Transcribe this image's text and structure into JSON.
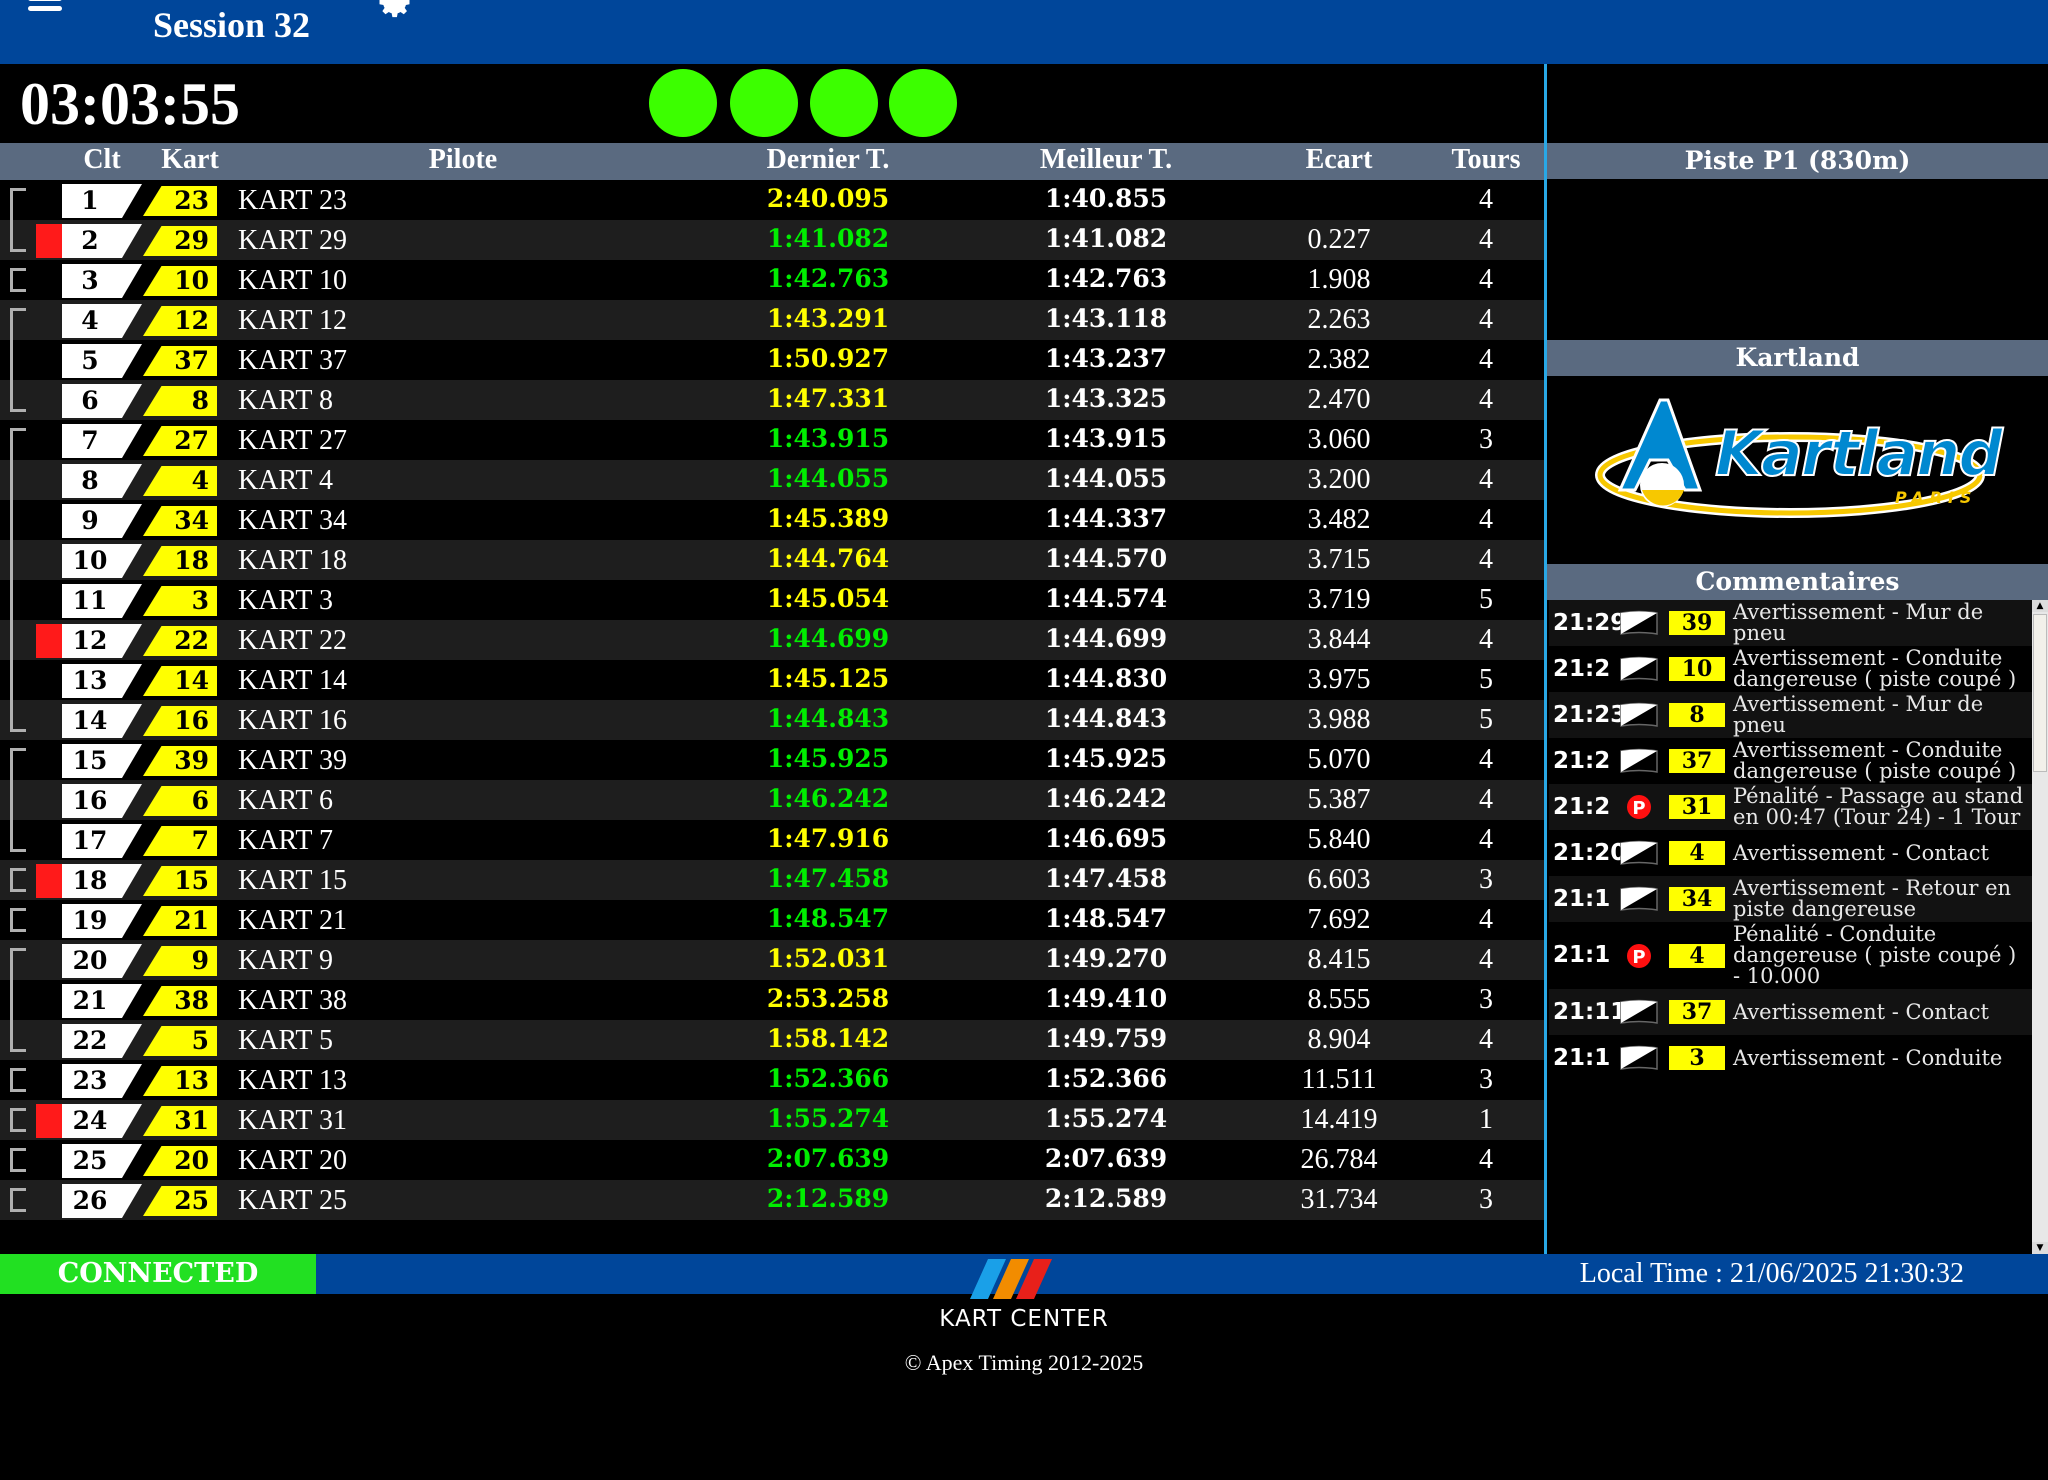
{
  "header": {
    "title": "Session 32",
    "menu_icon": "hamburger-icon",
    "settings_icon": "gear-icon"
  },
  "timer": "03:03:55",
  "lights": {
    "count": 4,
    "color": "#3cff00"
  },
  "table": {
    "columns": {
      "clt": "Clt",
      "kart": "Kart",
      "pilote": "Pilote",
      "dernier": "Dernier T.",
      "meilleur": "Meilleur T.",
      "ecart": "Ecart",
      "tours": "Tours"
    },
    "colors": {
      "personal_best": "#00ee00",
      "normal": "#ffff00"
    },
    "rows": [
      {
        "pos": "1",
        "kart": "23",
        "pilot": "KART 23",
        "last": "2:40.095",
        "best": "1:40.855",
        "gap": "",
        "laps": "4",
        "last_status": "normal",
        "bracket": "top",
        "flag": false
      },
      {
        "pos": "2",
        "kart": "29",
        "pilot": "KART 29",
        "last": "1:41.082",
        "best": "1:41.082",
        "gap": "0.227",
        "laps": "4",
        "last_status": "personal_best",
        "bracket": "bottom",
        "flag": true
      },
      {
        "pos": "3",
        "kart": "10",
        "pilot": "KART 10",
        "last": "1:42.763",
        "best": "1:42.763",
        "gap": "1.908",
        "laps": "4",
        "last_status": "personal_best",
        "bracket": "single",
        "flag": false
      },
      {
        "pos": "4",
        "kart": "12",
        "pilot": "KART 12",
        "last": "1:43.291",
        "best": "1:43.118",
        "gap": "2.263",
        "laps": "4",
        "last_status": "normal",
        "bracket": "top",
        "flag": false
      },
      {
        "pos": "5",
        "kart": "37",
        "pilot": "KART 37",
        "last": "1:50.927",
        "best": "1:43.237",
        "gap": "2.382",
        "laps": "4",
        "last_status": "normal",
        "bracket": "mid",
        "flag": false
      },
      {
        "pos": "6",
        "kart": "8",
        "pilot": "KART 8",
        "last": "1:47.331",
        "best": "1:43.325",
        "gap": "2.470",
        "laps": "4",
        "last_status": "normal",
        "bracket": "bottom",
        "flag": false
      },
      {
        "pos": "7",
        "kart": "27",
        "pilot": "KART 27",
        "last": "1:43.915",
        "best": "1:43.915",
        "gap": "3.060",
        "laps": "3",
        "last_status": "personal_best",
        "bracket": "top",
        "flag": false
      },
      {
        "pos": "8",
        "kart": "4",
        "pilot": "KART 4",
        "last": "1:44.055",
        "best": "1:44.055",
        "gap": "3.200",
        "laps": "4",
        "last_status": "personal_best",
        "bracket": "mid",
        "flag": false
      },
      {
        "pos": "9",
        "kart": "34",
        "pilot": "KART 34",
        "last": "1:45.389",
        "best": "1:44.337",
        "gap": "3.482",
        "laps": "4",
        "last_status": "normal",
        "bracket": "mid",
        "flag": false
      },
      {
        "pos": "10",
        "kart": "18",
        "pilot": "KART 18",
        "last": "1:44.764",
        "best": "1:44.570",
        "gap": "3.715",
        "laps": "4",
        "last_status": "normal",
        "bracket": "mid",
        "flag": false
      },
      {
        "pos": "11",
        "kart": "3",
        "pilot": "KART 3",
        "last": "1:45.054",
        "best": "1:44.574",
        "gap": "3.719",
        "laps": "5",
        "last_status": "normal",
        "bracket": "mid",
        "flag": false
      },
      {
        "pos": "12",
        "kart": "22",
        "pilot": "KART 22",
        "last": "1:44.699",
        "best": "1:44.699",
        "gap": "3.844",
        "laps": "4",
        "last_status": "personal_best",
        "bracket": "mid",
        "flag": true
      },
      {
        "pos": "13",
        "kart": "14",
        "pilot": "KART 14",
        "last": "1:45.125",
        "best": "1:44.830",
        "gap": "3.975",
        "laps": "5",
        "last_status": "normal",
        "bracket": "mid",
        "flag": false
      },
      {
        "pos": "14",
        "kart": "16",
        "pilot": "KART 16",
        "last": "1:44.843",
        "best": "1:44.843",
        "gap": "3.988",
        "laps": "5",
        "last_status": "personal_best",
        "bracket": "bottom",
        "flag": false
      },
      {
        "pos": "15",
        "kart": "39",
        "pilot": "KART 39",
        "last": "1:45.925",
        "best": "1:45.925",
        "gap": "5.070",
        "laps": "4",
        "last_status": "personal_best",
        "bracket": "top",
        "flag": false
      },
      {
        "pos": "16",
        "kart": "6",
        "pilot": "KART 6",
        "last": "1:46.242",
        "best": "1:46.242",
        "gap": "5.387",
        "laps": "4",
        "last_status": "personal_best",
        "bracket": "mid",
        "flag": false
      },
      {
        "pos": "17",
        "kart": "7",
        "pilot": "KART 7",
        "last": "1:47.916",
        "best": "1:46.695",
        "gap": "5.840",
        "laps": "4",
        "last_status": "normal",
        "bracket": "bottom",
        "flag": false
      },
      {
        "pos": "18",
        "kart": "15",
        "pilot": "KART 15",
        "last": "1:47.458",
        "best": "1:47.458",
        "gap": "6.603",
        "laps": "3",
        "last_status": "personal_best",
        "bracket": "single",
        "flag": true
      },
      {
        "pos": "19",
        "kart": "21",
        "pilot": "KART 21",
        "last": "1:48.547",
        "best": "1:48.547",
        "gap": "7.692",
        "laps": "4",
        "last_status": "personal_best",
        "bracket": "single",
        "flag": false
      },
      {
        "pos": "20",
        "kart": "9",
        "pilot": "KART 9",
        "last": "1:52.031",
        "best": "1:49.270",
        "gap": "8.415",
        "laps": "4",
        "last_status": "normal",
        "bracket": "top",
        "flag": false
      },
      {
        "pos": "21",
        "kart": "38",
        "pilot": "KART 38",
        "last": "2:53.258",
        "best": "1:49.410",
        "gap": "8.555",
        "laps": "3",
        "last_status": "normal",
        "bracket": "mid",
        "flag": false
      },
      {
        "pos": "22",
        "kart": "5",
        "pilot": "KART 5",
        "last": "1:58.142",
        "best": "1:49.759",
        "gap": "8.904",
        "laps": "4",
        "last_status": "normal",
        "bracket": "bottom",
        "flag": false
      },
      {
        "pos": "23",
        "kart": "13",
        "pilot": "KART 13",
        "last": "1:52.366",
        "best": "1:52.366",
        "gap": "11.511",
        "laps": "3",
        "last_status": "personal_best",
        "bracket": "single",
        "flag": false
      },
      {
        "pos": "24",
        "kart": "31",
        "pilot": "KART 31",
        "last": "1:55.274",
        "best": "1:55.274",
        "gap": "14.419",
        "laps": "1",
        "last_status": "personal_best",
        "bracket": "single",
        "flag": true
      },
      {
        "pos": "25",
        "kart": "20",
        "pilot": "KART 20",
        "last": "2:07.639",
        "best": "2:07.639",
        "gap": "26.784",
        "laps": "4",
        "last_status": "personal_best",
        "bracket": "single",
        "flag": false
      },
      {
        "pos": "26",
        "kart": "25",
        "pilot": "KART 25",
        "last": "2:12.589",
        "best": "2:12.589",
        "gap": "31.734",
        "laps": "3",
        "last_status": "personal_best",
        "bracket": "single",
        "flag": false
      }
    ]
  },
  "right_panel": {
    "track_title": "Piste P1 (830m)",
    "sponsor_title": "Kartland",
    "sponsor_logo": {
      "text": "Kartland",
      "subtext": "PARIS",
      "colors": {
        "blue": "#0088d0",
        "yellow": "#f7c800"
      }
    },
    "comments_title": "Commentaires",
    "comments": [
      {
        "time": "21:29",
        "icon": "warning-flag-icon",
        "kart": "39",
        "text": "Avertissement - Mur de pneu"
      },
      {
        "time": "21:2",
        "icon": "warning-flag-icon",
        "kart": "10",
        "text": "Avertissement - Conduite dangereuse ( piste coupé )"
      },
      {
        "time": "21:23",
        "icon": "warning-flag-icon",
        "kart": "8",
        "text": "Avertissement - Mur de pneu"
      },
      {
        "time": "21:2",
        "icon": "warning-flag-icon",
        "kart": "37",
        "text": "Avertissement - Conduite dangereuse ( piste coupé )"
      },
      {
        "time": "21:2",
        "icon": "penalty-icon",
        "kart": "31",
        "text": "Pénalité - Passage au stand en 00:47 (Tour 24) - 1 Tour"
      },
      {
        "time": "21:20",
        "icon": "warning-flag-icon",
        "kart": "4",
        "text": "Avertissement - Contact"
      },
      {
        "time": "21:1",
        "icon": "warning-flag-icon",
        "kart": "34",
        "text": "Avertissement - Retour en piste dangereuse"
      },
      {
        "time": "21:1",
        "icon": "penalty-icon",
        "kart": "4",
        "text": "Pénalité - Conduite dangereuse ( piste coupé ) - 10.000"
      },
      {
        "time": "21:11",
        "icon": "warning-flag-icon",
        "kart": "37",
        "text": "Avertissement - Contact"
      },
      {
        "time": "21:1",
        "icon": "warning-flag-icon",
        "kart": "3",
        "text": "Avertissement - Conduite"
      }
    ]
  },
  "footer": {
    "status": "CONNECTED",
    "status_color": "#22e022",
    "local_time": "Local Time : 21/06/2025 21:30:32",
    "brand": "KART CENTER",
    "copyright": "© Apex Timing 2012-2025"
  }
}
